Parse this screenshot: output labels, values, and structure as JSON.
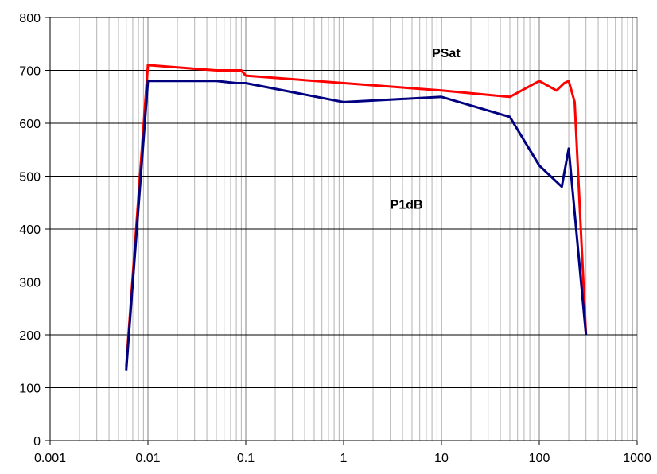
{
  "chart_data": {
    "type": "line",
    "title": "",
    "xlabel": "",
    "ylabel": "",
    "x_scale": "log",
    "xlim": [
      0.001,
      1000
    ],
    "ylim": [
      0,
      800
    ],
    "grid": true,
    "legend": "none",
    "x_ticks": [
      {
        "value": 0.001,
        "label": "0.001"
      },
      {
        "value": 0.01,
        "label": "0.01"
      },
      {
        "value": 0.1,
        "label": "0.1"
      },
      {
        "value": 1,
        "label": "1"
      },
      {
        "value": 10,
        "label": "10"
      },
      {
        "value": 100,
        "label": "100"
      },
      {
        "value": 1000,
        "label": "1000"
      }
    ],
    "y_ticks": [
      {
        "value": 0,
        "label": "0"
      },
      {
        "value": 100,
        "label": "100"
      },
      {
        "value": 200,
        "label": "200"
      },
      {
        "value": 300,
        "label": "300"
      },
      {
        "value": 400,
        "label": "400"
      },
      {
        "value": 500,
        "label": "500"
      },
      {
        "value": 600,
        "label": "600"
      },
      {
        "value": 700,
        "label": "700"
      },
      {
        "value": 800,
        "label": "800"
      }
    ],
    "series": [
      {
        "name": "PSat",
        "color": "#ff0000",
        "label_anchor": {
          "x": 8,
          "y": 725
        },
        "points": [
          {
            "x": 0.006,
            "y": 140
          },
          {
            "x": 0.01,
            "y": 710
          },
          {
            "x": 0.05,
            "y": 700
          },
          {
            "x": 0.09,
            "y": 700
          },
          {
            "x": 0.1,
            "y": 690
          },
          {
            "x": 10,
            "y": 662
          },
          {
            "x": 50,
            "y": 650
          },
          {
            "x": 100,
            "y": 680
          },
          {
            "x": 150,
            "y": 662
          },
          {
            "x": 180,
            "y": 676
          },
          {
            "x": 200,
            "y": 680
          },
          {
            "x": 230,
            "y": 640
          },
          {
            "x": 300,
            "y": 200
          }
        ]
      },
      {
        "name": "P1dB",
        "color": "#000080",
        "label_anchor": {
          "x": 3,
          "y": 438
        },
        "points": [
          {
            "x": 0.006,
            "y": 133
          },
          {
            "x": 0.01,
            "y": 680
          },
          {
            "x": 0.05,
            "y": 680
          },
          {
            "x": 0.08,
            "y": 676
          },
          {
            "x": 0.1,
            "y": 676
          },
          {
            "x": 1,
            "y": 640
          },
          {
            "x": 10,
            "y": 650
          },
          {
            "x": 50,
            "y": 612
          },
          {
            "x": 100,
            "y": 520
          },
          {
            "x": 170,
            "y": 480
          },
          {
            "x": 200,
            "y": 552
          },
          {
            "x": 300,
            "y": 200
          }
        ]
      }
    ]
  }
}
